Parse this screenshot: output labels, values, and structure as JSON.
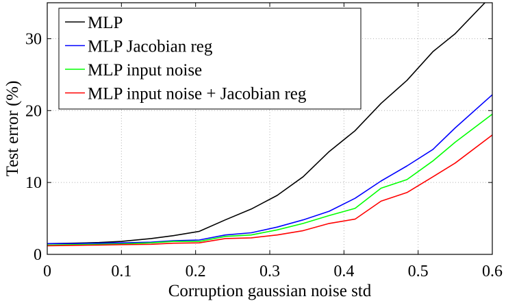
{
  "chart_data": {
    "type": "line",
    "title": "",
    "xlabel": "Corruption gaussian noise std",
    "ylabel": "Test error (%)",
    "xlim": [
      0,
      0.6
    ],
    "ylim": [
      0,
      35
    ],
    "xticks": [
      0,
      0.1,
      0.2,
      0.3,
      0.4,
      0.5,
      0.6
    ],
    "xtick_labels": [
      "0",
      "0.1",
      "0.2",
      "0.3",
      "0.4",
      "0.5",
      "0.6"
    ],
    "yticks": [
      0,
      10,
      20,
      30
    ],
    "ytick_labels": [
      "0",
      "10",
      "20",
      "30"
    ],
    "grid": true,
    "legend_position": "top-left",
    "series": [
      {
        "name": "MLP",
        "color": "#000000",
        "x": [
          0,
          0.035,
          0.07,
          0.1,
          0.14,
          0.17,
          0.205,
          0.24,
          0.275,
          0.31,
          0.345,
          0.38,
          0.415,
          0.45,
          0.485,
          0.52,
          0.55,
          0.59
        ],
        "y": [
          1.5,
          1.55,
          1.65,
          1.8,
          2.2,
          2.6,
          3.2,
          4.8,
          6.3,
          8.2,
          10.8,
          14.3,
          17.2,
          21.0,
          24.2,
          28.2,
          30.7,
          35.0
        ]
      },
      {
        "name": "MLP Jacobian reg",
        "color": "#0000ff",
        "x": [
          0,
          0.035,
          0.07,
          0.1,
          0.14,
          0.17,
          0.205,
          0.24,
          0.275,
          0.31,
          0.345,
          0.38,
          0.415,
          0.45,
          0.485,
          0.52,
          0.55,
          0.6
        ],
        "y": [
          1.5,
          1.5,
          1.55,
          1.6,
          1.7,
          1.9,
          2.0,
          2.7,
          3.0,
          3.8,
          4.8,
          6.0,
          7.8,
          10.2,
          12.3,
          14.6,
          17.6,
          22.2
        ]
      },
      {
        "name": "MLP input noise",
        "color": "#00ff00",
        "x": [
          0,
          0.035,
          0.07,
          0.1,
          0.14,
          0.17,
          0.205,
          0.24,
          0.275,
          0.31,
          0.345,
          0.38,
          0.415,
          0.45,
          0.485,
          0.52,
          0.55,
          0.6
        ],
        "y": [
          1.3,
          1.35,
          1.4,
          1.45,
          1.6,
          1.8,
          1.8,
          2.5,
          2.7,
          3.4,
          4.3,
          5.4,
          6.4,
          9.2,
          10.4,
          13.0,
          15.6,
          19.5
        ]
      },
      {
        "name": "MLP input noise + Jacobian reg",
        "color": "#ff0000",
        "x": [
          0,
          0.035,
          0.07,
          0.1,
          0.14,
          0.17,
          0.205,
          0.24,
          0.275,
          0.31,
          0.345,
          0.38,
          0.415,
          0.45,
          0.485,
          0.52,
          0.55,
          0.6
        ],
        "y": [
          1.2,
          1.25,
          1.3,
          1.35,
          1.4,
          1.55,
          1.6,
          2.2,
          2.3,
          2.7,
          3.3,
          4.3,
          4.9,
          7.4,
          8.6,
          10.8,
          12.7,
          16.6
        ]
      }
    ]
  }
}
